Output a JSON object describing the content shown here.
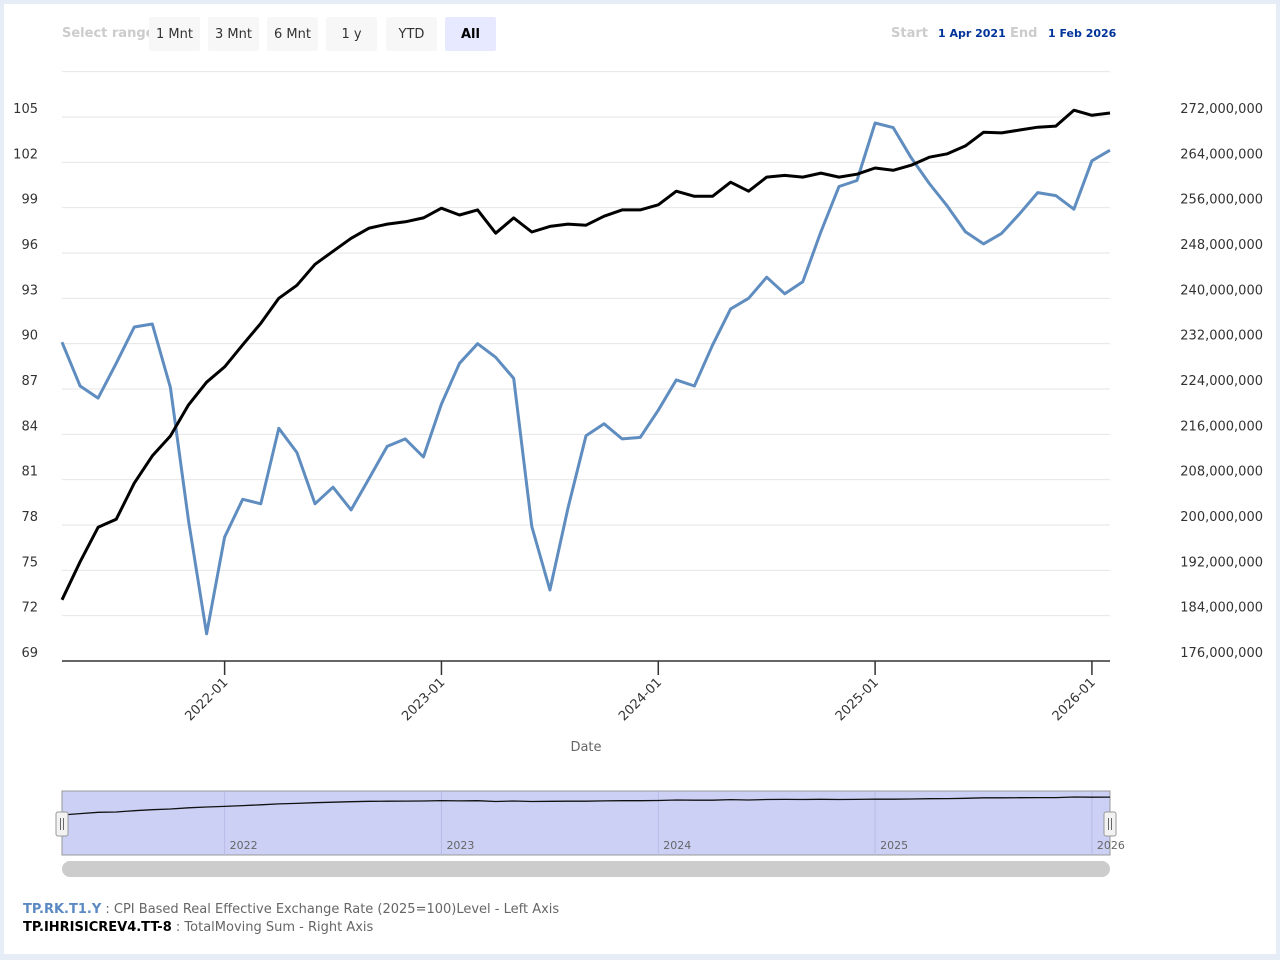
{
  "range_selector": {
    "label": "Select range",
    "buttons": [
      "1 Mnt",
      "3 Mnt",
      "6 Mnt",
      "1 y",
      "YTD",
      "All"
    ],
    "selected": "All",
    "start_label": "Start",
    "start_value": "1 Apr 2021",
    "end_label": "End",
    "end_value": "1 Feb 2026"
  },
  "legend": [
    {
      "code": "TP.RK.T1.Y",
      "desc": " : CPI Based Real Effective Exchange Rate (2025=100)Level - Left Axis",
      "color": "#5b8ac2"
    },
    {
      "code": "TP.IHRISICREV4.TT-8",
      "desc": " : TotalMoving Sum - Right Axis",
      "color": "#000000"
    }
  ],
  "chart_data": {
    "type": "line",
    "xlabel": "Date",
    "x_ticks": [
      "2022-01",
      "2023-01",
      "2024-01",
      "2025-01",
      "2026-01"
    ],
    "navigator_ticks": [
      "2022",
      "2023",
      "2024",
      "2025",
      "2026"
    ],
    "left_axis": {
      "ticks": [
        69,
        72,
        75,
        78,
        81,
        84,
        87,
        90,
        93,
        96,
        99,
        102,
        105
      ],
      "range": [
        69,
        108
      ]
    },
    "right_axis": {
      "ticks": [
        "176,000,000",
        "184,000,000",
        "192,000,000",
        "200,000,000",
        "208,000,000",
        "216,000,000",
        "224,000,000",
        "232,000,000",
        "240,000,000",
        "248,000,000",
        "256,000,000",
        "264,000,000",
        "272,000,000"
      ],
      "range": [
        176000000,
        280000000
      ]
    },
    "grid": true,
    "x": [
      "2021-04",
      "2021-05",
      "2021-06",
      "2021-07",
      "2021-08",
      "2021-09",
      "2021-10",
      "2021-11",
      "2021-12",
      "2022-01",
      "2022-02",
      "2022-03",
      "2022-04",
      "2022-05",
      "2022-06",
      "2022-07",
      "2022-08",
      "2022-09",
      "2022-10",
      "2022-11",
      "2022-12",
      "2023-01",
      "2023-02",
      "2023-03",
      "2023-04",
      "2023-05",
      "2023-06",
      "2023-07",
      "2023-08",
      "2023-09",
      "2023-10",
      "2023-11",
      "2023-12",
      "2024-01",
      "2024-02",
      "2024-03",
      "2024-04",
      "2024-05",
      "2024-06",
      "2024-07",
      "2024-08",
      "2024-09",
      "2024-10",
      "2024-11",
      "2024-12",
      "2025-01",
      "2025-02",
      "2025-03",
      "2025-04",
      "2025-05",
      "2025-06",
      "2025-07",
      "2025-08",
      "2025-09",
      "2025-10",
      "2025-11",
      "2025-12",
      "2026-01",
      "2026-02"
    ],
    "series": [
      {
        "name": "TP.RK.T1.Y",
        "axis": "left",
        "color": "#5f8dc0",
        "values": [
          90.1,
          87.2,
          86.4,
          88.7,
          91.1,
          91.3,
          87.1,
          78.3,
          70.8,
          77.2,
          79.7,
          79.4,
          84.4,
          82.8,
          79.4,
          80.5,
          79.0,
          81.1,
          83.2,
          83.7,
          82.5,
          86.0,
          88.7,
          90.0,
          89.1,
          87.7,
          77.9,
          73.7,
          79.1,
          83.9,
          84.7,
          83.7,
          83.8,
          85.6,
          87.6,
          87.2,
          89.9,
          92.3,
          93.0,
          94.4,
          93.3,
          94.1,
          97.4,
          100.4,
          100.8,
          104.6,
          104.3,
          102.3,
          100.6,
          99.1,
          97.4,
          96.6,
          97.3,
          98.6,
          100.0,
          99.8,
          98.9,
          102.1,
          102.8
        ]
      },
      {
        "name": "TP.IHRISICREV4.TT-8",
        "axis": "right",
        "color": "#000000",
        "values": [
          186800000,
          193500000,
          199600000,
          201000000,
          207400000,
          212200000,
          215700000,
          221200000,
          225200000,
          227900000,
          231800000,
          235600000,
          240000000,
          242300000,
          246000000,
          248300000,
          250600000,
          252400000,
          253100000,
          253500000,
          254200000,
          255900000,
          254700000,
          255600000,
          251500000,
          254200000,
          251700000,
          252700000,
          253100000,
          252900000,
          254500000,
          255600000,
          255600000,
          256500000,
          258900000,
          258000000,
          258000000,
          260500000,
          258900000,
          261400000,
          261700000,
          261400000,
          262100000,
          261400000,
          261900000,
          263000000,
          262600000,
          263500000,
          264900000,
          265500000,
          266900000,
          269300000,
          269200000,
          269700000,
          270200000,
          270400000,
          273200000,
          272300000,
          272700000
        ]
      }
    ]
  }
}
